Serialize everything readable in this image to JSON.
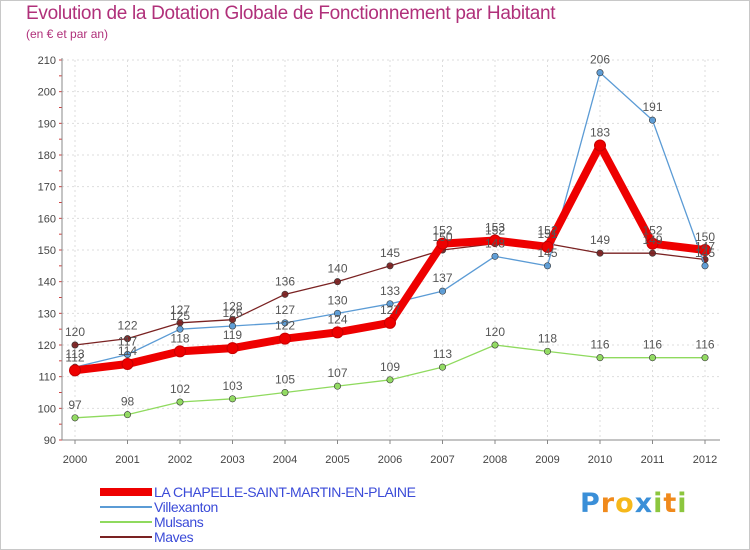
{
  "header": {
    "title": "Evolution de la Dotation Globale de Fonctionnement par Habitant",
    "subtitle": "(en € et par an)"
  },
  "chart_data": {
    "type": "line",
    "title": "Evolution de la Dotation Globale de Fonctionnement par Habitant",
    "subtitle": "(en € et par an)",
    "xlabel": "",
    "ylabel": "",
    "ylim": [
      90,
      210
    ],
    "yticks": [
      "90",
      "100",
      "110",
      "120",
      "130",
      "140",
      "150",
      "160",
      "170",
      "180",
      "190",
      "200",
      "210"
    ],
    "categories": [
      "2000",
      "2001",
      "2002",
      "2003",
      "2004",
      "2005",
      "2006",
      "2007",
      "2008",
      "2009",
      "2010",
      "2011",
      "2012"
    ],
    "grid": true,
    "legend_position": "bottom-left",
    "series": [
      {
        "name": "LA CHAPELLE-SAINT-MARTIN-EN-PLAINE",
        "color": "#ee0000",
        "values": [
          112,
          114,
          118,
          119,
          122,
          124,
          127,
          152,
          153,
          151,
          183,
          152,
          150
        ]
      },
      {
        "name": "Villexanton",
        "color": "#5b9bd5",
        "values": [
          113,
          117,
          125,
          126,
          127,
          130,
          133,
          137,
          148,
          145,
          206,
          191,
          145
        ]
      },
      {
        "name": "Mulsans",
        "color": "#8fda5e",
        "values": [
          97,
          98,
          102,
          103,
          105,
          107,
          109,
          113,
          120,
          118,
          116,
          116,
          116
        ]
      },
      {
        "name": "Maves",
        "color": "#7a2222",
        "values": [
          120,
          122,
          127,
          128,
          136,
          140,
          145,
          150,
          152,
          152,
          149,
          149,
          147
        ]
      }
    ]
  },
  "brand": {
    "name": "Proxiti",
    "letters": [
      "P",
      "r",
      "o",
      "x",
      "i",
      "t",
      "i"
    ]
  }
}
